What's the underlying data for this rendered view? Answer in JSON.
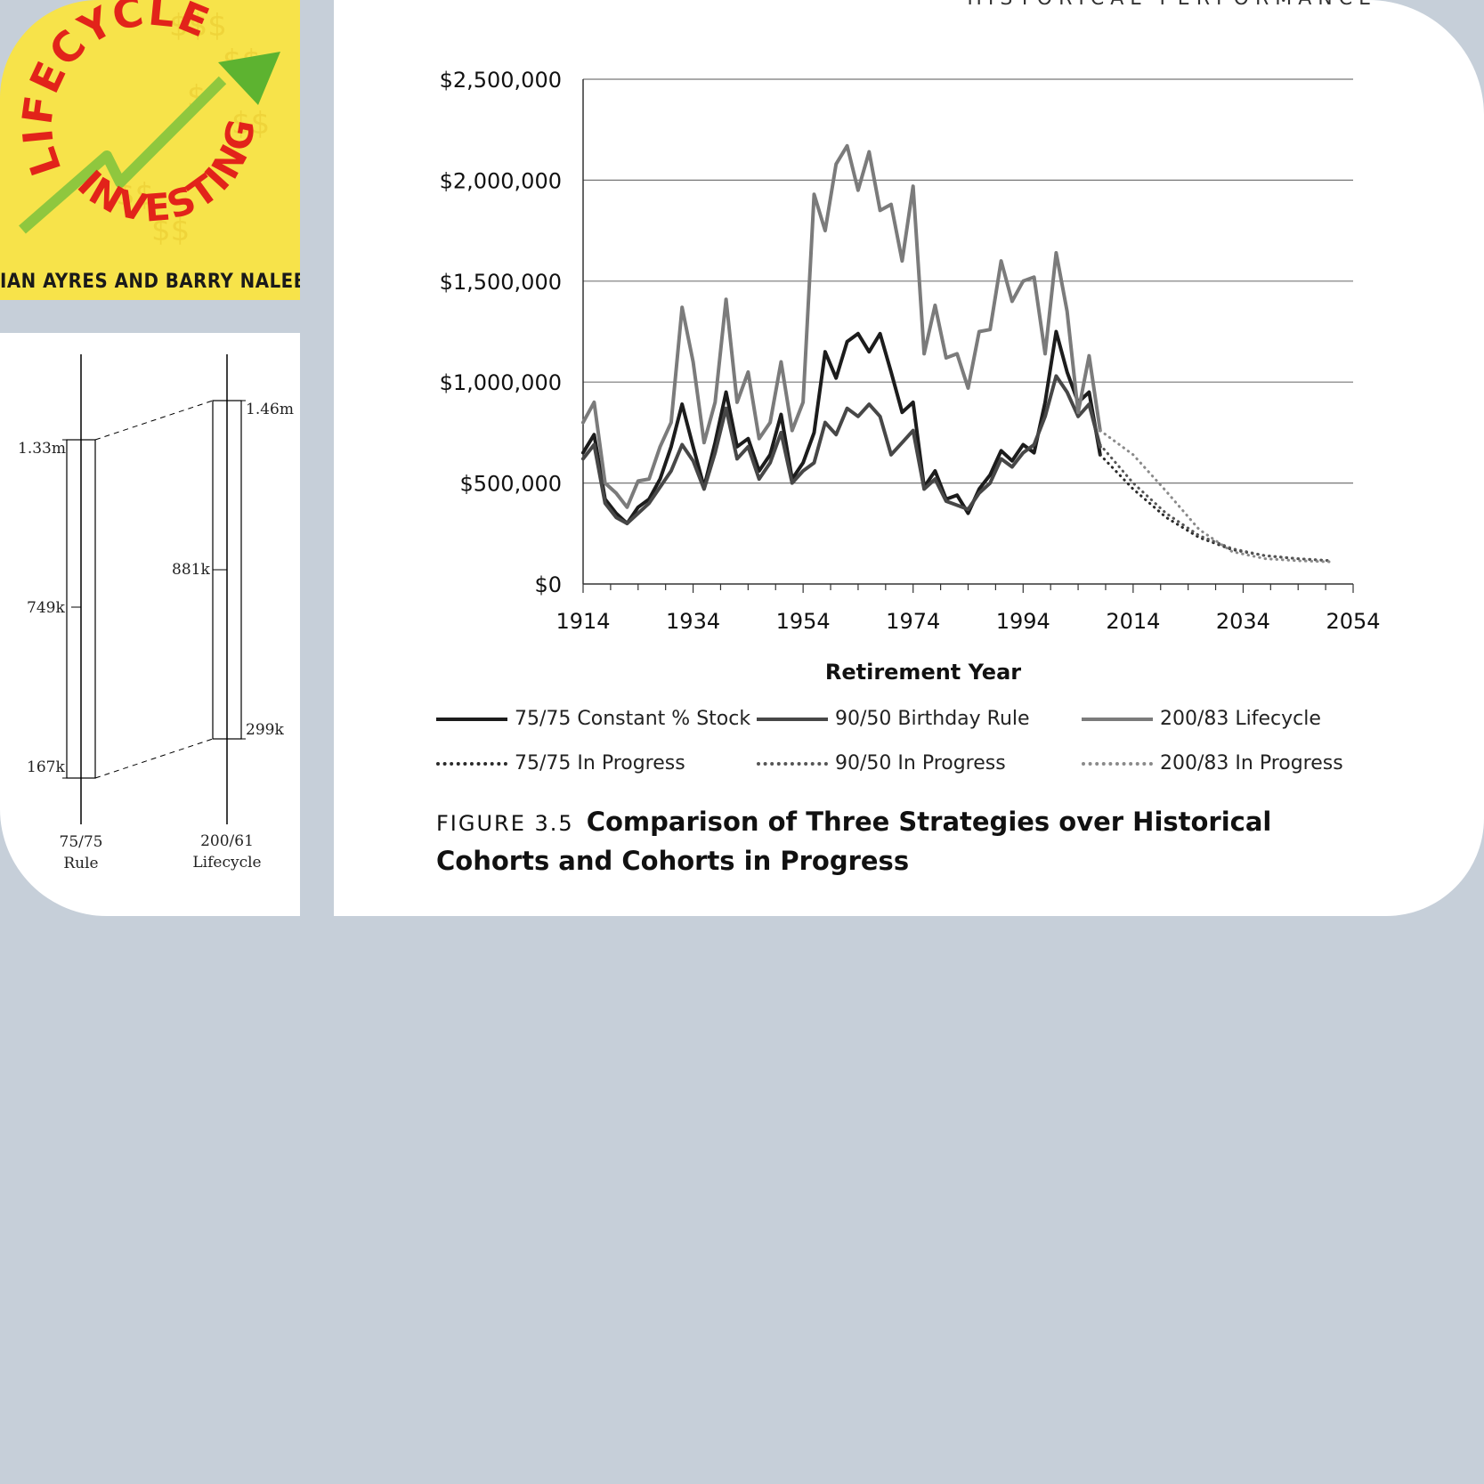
{
  "cover": {
    "title_top": "LIFECYCLE",
    "title_bottom": "INVESTING",
    "authors": "IAN AYRES AND BARRY NALEBUFF"
  },
  "running_head": "HISTORICAL PERFORMANCE",
  "range_diagram": {
    "bars": [
      {
        "name": "75/75 Rule",
        "label_line1": "75/75",
        "label_line2": "Rule",
        "high": "1.33m",
        "mid": "749k",
        "low": "167k"
      },
      {
        "name": "200/61 Lifecycle",
        "label_line1": "200/61",
        "label_line2": "Lifecycle",
        "high": "1.46m",
        "mid": "881k",
        "low": "299k"
      }
    ]
  },
  "figure": {
    "label": "FIGURE 3.5",
    "title": "Comparison of Three Strategies over Historical Cohorts and Cohorts in Progress"
  },
  "chart_data": {
    "type": "line",
    "xlabel": "Retirement Year",
    "ylabel": "",
    "xlim": [
      1914,
      2054
    ],
    "ylim": [
      0,
      2500000
    ],
    "x_ticks": [
      "1914",
      "1934",
      "1954",
      "1974",
      "1994",
      "2014",
      "2034",
      "2054"
    ],
    "y_ticks": [
      "$0",
      "$500,000",
      "$1,000,000",
      "$1,500,000",
      "$2,000,000",
      "$2,500,000"
    ],
    "grid": "horizontal",
    "legend_position": "bottom",
    "series": [
      {
        "name": "75/75 Constant % Stock",
        "style": "solid",
        "color": "#1c1c1c",
        "x": [
          1914,
          1916,
          1918,
          1920,
          1922,
          1924,
          1926,
          1928,
          1930,
          1932,
          1934,
          1936,
          1938,
          1940,
          1942,
          1944,
          1946,
          1948,
          1950,
          1952,
          1954,
          1956,
          1958,
          1960,
          1962,
          1964,
          1966,
          1968,
          1970,
          1972,
          1974,
          1976,
          1978,
          1980,
          1982,
          1984,
          1986,
          1988,
          1990,
          1992,
          1994,
          1996,
          1998,
          2000,
          2002,
          2004,
          2006,
          2008
        ],
        "y": [
          650000,
          740000,
          420000,
          350000,
          300000,
          380000,
          420000,
          520000,
          680000,
          890000,
          680000,
          480000,
          700000,
          950000,
          680000,
          720000,
          560000,
          640000,
          840000,
          520000,
          600000,
          750000,
          1150000,
          1020000,
          1200000,
          1240000,
          1150000,
          1240000,
          1050000,
          850000,
          900000,
          480000,
          560000,
          420000,
          440000,
          350000,
          470000,
          540000,
          660000,
          610000,
          690000,
          650000,
          900000,
          1250000,
          1050000,
          900000,
          950000,
          640000
        ]
      },
      {
        "name": "90/50 Birthday Rule",
        "style": "solid",
        "color": "#474747",
        "x": [
          1914,
          1916,
          1918,
          1920,
          1922,
          1924,
          1926,
          1928,
          1930,
          1932,
          1934,
          1936,
          1938,
          1940,
          1942,
          1944,
          1946,
          1948,
          1950,
          1952,
          1954,
          1956,
          1958,
          1960,
          1962,
          1964,
          1966,
          1968,
          1970,
          1972,
          1974,
          1976,
          1978,
          1980,
          1982,
          1984,
          1986,
          1988,
          1990,
          1992,
          1994,
          1996,
          1998,
          2000,
          2002,
          2004,
          2006,
          2008
        ],
        "y": [
          620000,
          690000,
          400000,
          330000,
          300000,
          350000,
          400000,
          480000,
          560000,
          690000,
          610000,
          470000,
          650000,
          870000,
          620000,
          680000,
          520000,
          600000,
          750000,
          500000,
          560000,
          600000,
          800000,
          740000,
          870000,
          830000,
          890000,
          830000,
          640000,
          700000,
          760000,
          470000,
          520000,
          410000,
          390000,
          370000,
          450000,
          500000,
          620000,
          580000,
          650000,
          690000,
          830000,
          1030000,
          950000,
          830000,
          890000,
          680000
        ]
      },
      {
        "name": "200/83 Lifecycle",
        "style": "solid",
        "color": "#7b7b7b",
        "x": [
          1914,
          1916,
          1918,
          1920,
          1922,
          1924,
          1926,
          1928,
          1930,
          1932,
          1934,
          1936,
          1938,
          1940,
          1942,
          1944,
          1946,
          1948,
          1950,
          1952,
          1954,
          1956,
          1958,
          1960,
          1962,
          1964,
          1966,
          1968,
          1970,
          1972,
          1974,
          1976,
          1978,
          1980,
          1982,
          1984,
          1986,
          1988,
          1990,
          1992,
          1994,
          1996,
          1998,
          2000,
          2002,
          2004,
          2006,
          2008
        ],
        "y": [
          800000,
          900000,
          500000,
          450000,
          380000,
          510000,
          520000,
          680000,
          800000,
          1370000,
          1100000,
          700000,
          900000,
          1410000,
          900000,
          1050000,
          720000,
          800000,
          1100000,
          760000,
          900000,
          1930000,
          1750000,
          2080000,
          2170000,
          1950000,
          2140000,
          1850000,
          1880000,
          1600000,
          1970000,
          1140000,
          1380000,
          1120000,
          1140000,
          970000,
          1250000,
          1260000,
          1600000,
          1400000,
          1500000,
          1520000,
          1140000,
          1640000,
          1350000,
          850000,
          1130000,
          760000
        ]
      },
      {
        "name": "75/75 In Progress",
        "style": "dotted",
        "color": "#2a2a2a",
        "x": [
          2008,
          2014,
          2020,
          2026,
          2032,
          2038,
          2044,
          2050
        ],
        "y": [
          640000,
          470000,
          330000,
          230000,
          170000,
          140000,
          125000,
          115000
        ]
      },
      {
        "name": "90/50 In Progress",
        "style": "dotted",
        "color": "#555555",
        "x": [
          2008,
          2014,
          2020,
          2026,
          2032,
          2038,
          2044,
          2050
        ],
        "y": [
          690000,
          500000,
          350000,
          240000,
          175000,
          140000,
          125000,
          115000
        ]
      },
      {
        "name": "200/83 In Progress",
        "style": "dotted",
        "color": "#8a8a8a",
        "x": [
          2008,
          2014,
          2020,
          2026,
          2032,
          2038,
          2044,
          2050
        ],
        "y": [
          760000,
          640000,
          460000,
          270000,
          160000,
          125000,
          115000,
          110000
        ]
      }
    ]
  }
}
